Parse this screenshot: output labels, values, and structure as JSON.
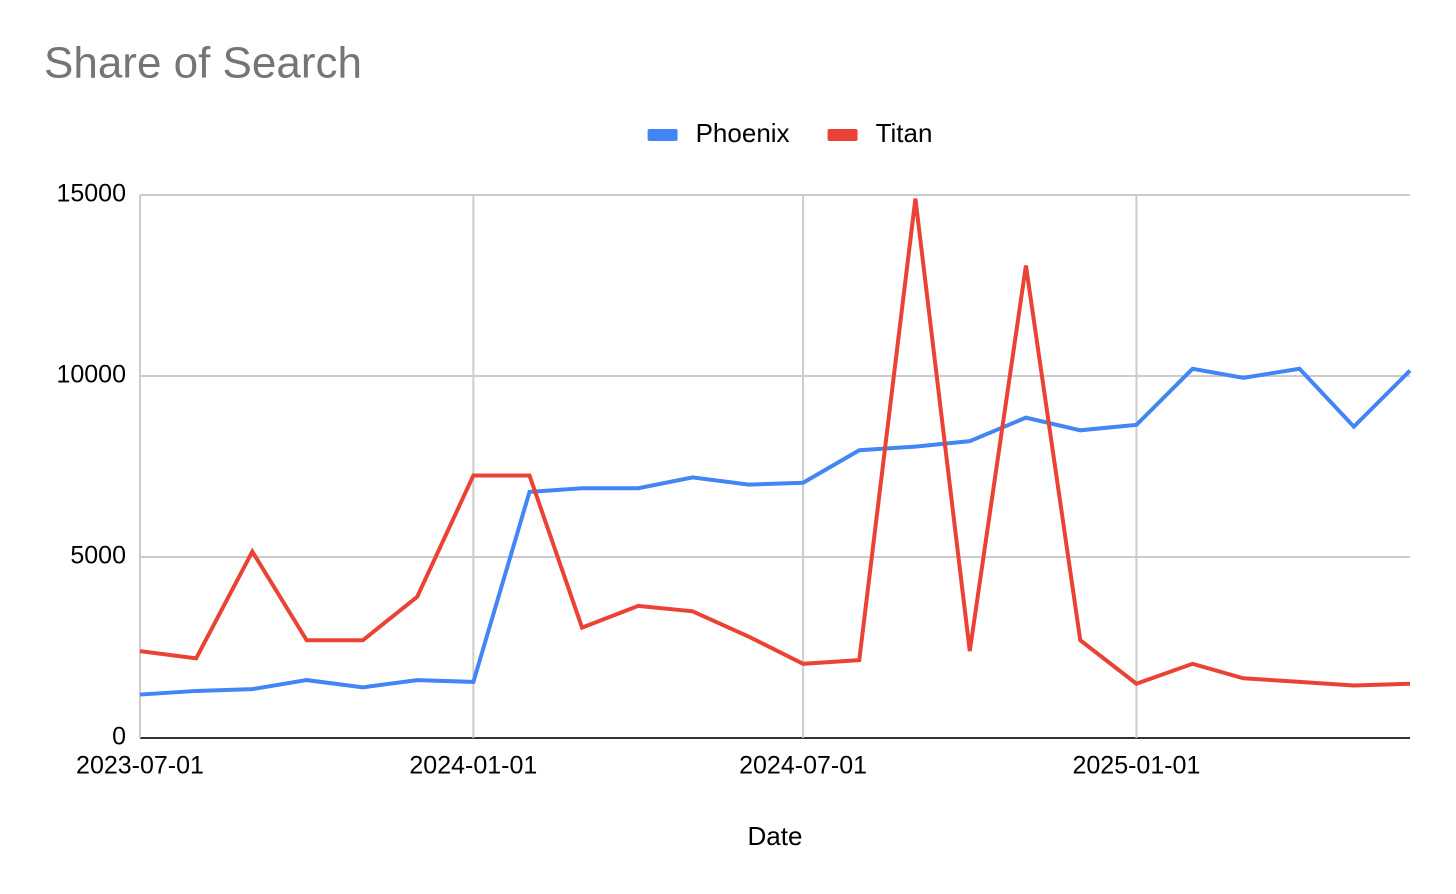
{
  "chart_data": {
    "type": "line",
    "title": "Share of Search",
    "x_label": "Date",
    "x": [
      "2023-07-01",
      "2023-08-01",
      "2023-09-01",
      "2023-10-01",
      "2023-11-01",
      "2023-12-01",
      "2024-01-01",
      "2024-02-01",
      "2024-03-01",
      "2024-04-01",
      "2024-05-01",
      "2024-06-01",
      "2024-07-01",
      "2024-08-01",
      "2024-09-01",
      "2024-10-01",
      "2024-11-01",
      "2024-12-01",
      "2025-01-01",
      "2025-02-01",
      "2025-03-01",
      "2025-04-01",
      "2025-05-01",
      "2025-06-01"
    ],
    "series": [
      {
        "name": "Phoenix",
        "color": "#4285f4",
        "values": [
          1200,
          1300,
          1350,
          1600,
          1400,
          1600,
          1550,
          6800,
          6900,
          6900,
          7200,
          7000,
          7050,
          7950,
          8050,
          8200,
          8850,
          8500,
          8650,
          10200,
          9950,
          10200,
          8600,
          10150
        ]
      },
      {
        "name": "Titan",
        "color": "#ea4335",
        "values": [
          2400,
          2200,
          5150,
          2700,
          2700,
          3900,
          7250,
          7250,
          3050,
          3650,
          3500,
          2800,
          2050,
          2150,
          14900,
          2400,
          13050,
          2700,
          1500,
          2050,
          1650,
          1550,
          1450,
          1500
        ]
      }
    ],
    "xlim": [
      "2023-07-01",
      "2025-06-01"
    ],
    "xticks": [
      "2023-07-01",
      "2024-01-01",
      "2024-07-01",
      "2025-01-01"
    ],
    "ylim": [
      0,
      15000
    ],
    "yticks": [
      0,
      5000,
      10000,
      15000
    ],
    "grid": true,
    "legend": "top"
  }
}
